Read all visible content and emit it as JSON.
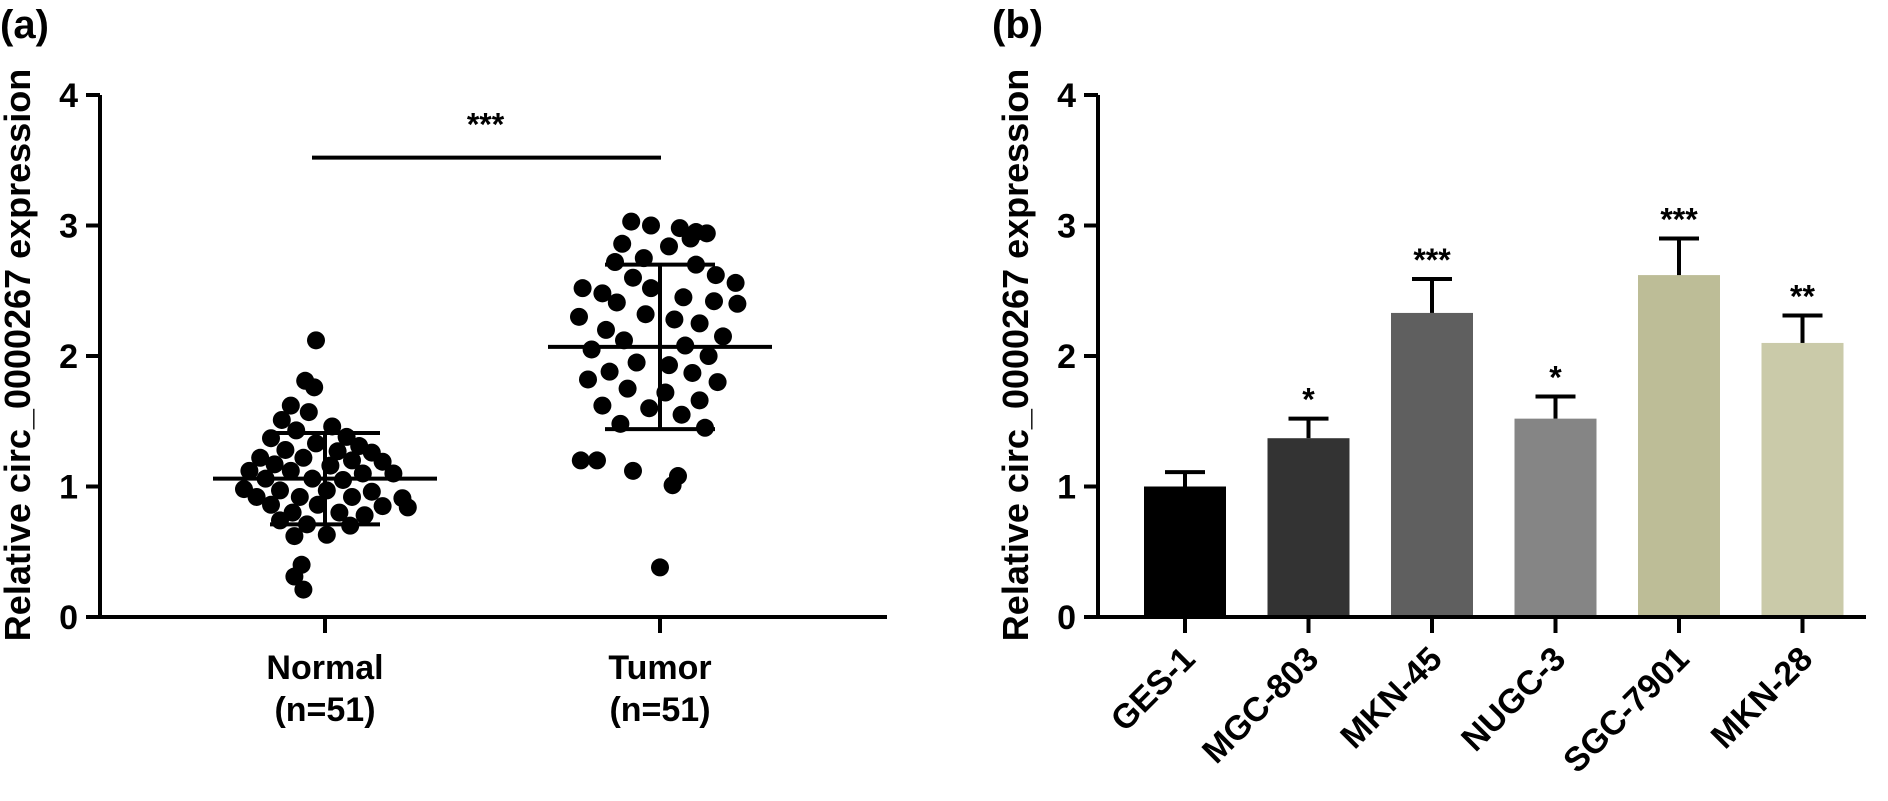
{
  "panels": {
    "a_label": "(a)",
    "b_label": "(b)"
  },
  "chart_data": [
    {
      "type": "scatter",
      "panel": "(a)",
      "ylabel": "Relative circ_0000267 expression",
      "ylim": [
        0,
        4
      ],
      "yticks": [
        "0",
        "1",
        "2",
        "3",
        "4"
      ],
      "categories": [
        {
          "label_line1": "Normal",
          "label_line2": "(n=51)",
          "mean": 1.06,
          "sd_low": 0.71,
          "sd_high": 1.41,
          "points": [
            {
              "x": -0.05,
              "y": 2.12
            },
            {
              "x": -0.11,
              "y": 1.81
            },
            {
              "x": -0.06,
              "y": 1.76
            },
            {
              "x": -0.19,
              "y": 1.62
            },
            {
              "x": -0.09,
              "y": 1.57
            },
            {
              "x": -0.24,
              "y": 1.51
            },
            {
              "x": 0.04,
              "y": 1.46
            },
            {
              "x": -0.16,
              "y": 1.43
            },
            {
              "x": 0.12,
              "y": 1.38
            },
            {
              "x": -0.3,
              "y": 1.37
            },
            {
              "x": -0.05,
              "y": 1.33
            },
            {
              "x": 0.19,
              "y": 1.31
            },
            {
              "x": -0.22,
              "y": 1.28
            },
            {
              "x": 0.07,
              "y": 1.27
            },
            {
              "x": 0.26,
              "y": 1.26
            },
            {
              "x": -0.36,
              "y": 1.22
            },
            {
              "x": -0.12,
              "y": 1.22
            },
            {
              "x": 0.15,
              "y": 1.2
            },
            {
              "x": 0.32,
              "y": 1.19
            },
            {
              "x": -0.28,
              "y": 1.17
            },
            {
              "x": 0.03,
              "y": 1.16
            },
            {
              "x": -0.42,
              "y": 1.12
            },
            {
              "x": -0.19,
              "y": 1.12
            },
            {
              "x": 0.21,
              "y": 1.1
            },
            {
              "x": 0.38,
              "y": 1.1
            },
            {
              "x": -0.33,
              "y": 1.06
            },
            {
              "x": -0.07,
              "y": 1.06
            },
            {
              "x": 0.1,
              "y": 1.05
            },
            {
              "x": -0.45,
              "y": 0.98
            },
            {
              "x": -0.25,
              "y": 0.97
            },
            {
              "x": 0.01,
              "y": 0.97
            },
            {
              "x": 0.26,
              "y": 0.96
            },
            {
              "x": -0.38,
              "y": 0.92
            },
            {
              "x": -0.14,
              "y": 0.92
            },
            {
              "x": 0.15,
              "y": 0.92
            },
            {
              "x": 0.43,
              "y": 0.91
            },
            {
              "x": -0.3,
              "y": 0.86
            },
            {
              "x": -0.04,
              "y": 0.86
            },
            {
              "x": 0.32,
              "y": 0.85
            },
            {
              "x": 0.46,
              "y": 0.84
            },
            {
              "x": -0.18,
              "y": 0.8
            },
            {
              "x": 0.08,
              "y": 0.8
            },
            {
              "x": 0.22,
              "y": 0.78
            },
            {
              "x": -0.25,
              "y": 0.74
            },
            {
              "x": -0.1,
              "y": 0.71
            },
            {
              "x": 0.14,
              "y": 0.7
            },
            {
              "x": -0.17,
              "y": 0.62
            },
            {
              "x": 0.01,
              "y": 0.63
            },
            {
              "x": -0.13,
              "y": 0.4
            },
            {
              "x": -0.17,
              "y": 0.31
            },
            {
              "x": -0.12,
              "y": 0.21
            }
          ]
        },
        {
          "label_line1": "Tumor",
          "label_line2": "(n=51)",
          "mean": 2.07,
          "sd_low": 1.44,
          "sd_high": 2.7,
          "points": [
            {
              "x": -0.16,
              "y": 3.03
            },
            {
              "x": -0.05,
              "y": 3.0
            },
            {
              "x": 0.11,
              "y": 2.98
            },
            {
              "x": 0.2,
              "y": 2.95
            },
            {
              "x": 0.26,
              "y": 2.94
            },
            {
              "x": 0.17,
              "y": 2.9
            },
            {
              "x": -0.21,
              "y": 2.86
            },
            {
              "x": 0.05,
              "y": 2.84
            },
            {
              "x": -0.09,
              "y": 2.75
            },
            {
              "x": -0.25,
              "y": 2.72
            },
            {
              "x": 0.2,
              "y": 2.7
            },
            {
              "x": 0.31,
              "y": 2.62
            },
            {
              "x": -0.15,
              "y": 2.6
            },
            {
              "x": -0.43,
              "y": 2.52
            },
            {
              "x": -0.32,
              "y": 2.48
            },
            {
              "x": 0.42,
              "y": 2.56
            },
            {
              "x": -0.05,
              "y": 2.52
            },
            {
              "x": 0.13,
              "y": 2.45
            },
            {
              "x": -0.24,
              "y": 2.41
            },
            {
              "x": 0.3,
              "y": 2.42
            },
            {
              "x": 0.43,
              "y": 2.4
            },
            {
              "x": -0.45,
              "y": 2.3
            },
            {
              "x": -0.08,
              "y": 2.32
            },
            {
              "x": 0.08,
              "y": 2.28
            },
            {
              "x": 0.22,
              "y": 2.25
            },
            {
              "x": -0.3,
              "y": 2.2
            },
            {
              "x": 0.35,
              "y": 2.15
            },
            {
              "x": -0.2,
              "y": 2.12
            },
            {
              "x": 0.14,
              "y": 2.08
            },
            {
              "x": -0.38,
              "y": 2.05
            },
            {
              "x": 0.27,
              "y": 2.0
            },
            {
              "x": -0.13,
              "y": 1.95
            },
            {
              "x": 0.05,
              "y": 1.93
            },
            {
              "x": -0.28,
              "y": 1.88
            },
            {
              "x": 0.18,
              "y": 1.87
            },
            {
              "x": -0.4,
              "y": 1.82
            },
            {
              "x": 0.32,
              "y": 1.8
            },
            {
              "x": -0.18,
              "y": 1.75
            },
            {
              "x": 0.03,
              "y": 1.72
            },
            {
              "x": 0.22,
              "y": 1.66
            },
            {
              "x": -0.32,
              "y": 1.62
            },
            {
              "x": -0.06,
              "y": 1.6
            },
            {
              "x": 0.12,
              "y": 1.55
            },
            {
              "x": -0.22,
              "y": 1.48
            },
            {
              "x": 0.25,
              "y": 1.45
            },
            {
              "x": -0.44,
              "y": 1.2
            },
            {
              "x": -0.35,
              "y": 1.2
            },
            {
              "x": -0.15,
              "y": 1.12
            },
            {
              "x": 0.1,
              "y": 1.08
            },
            {
              "x": 0.07,
              "y": 1.01
            },
            {
              "x": 0.0,
              "y": 0.38
            }
          ]
        }
      ],
      "significance": {
        "label": "***",
        "from": 0,
        "to": 1,
        "y": 3.52
      }
    },
    {
      "type": "bar",
      "panel": "(b)",
      "ylabel": "Relative circ_0000267 expression",
      "ylim": [
        0,
        4
      ],
      "yticks": [
        "0",
        "1",
        "2",
        "3",
        "4"
      ],
      "categories": [
        "GES-1",
        "MGC-803",
        "MKN-45",
        "NUGC-3",
        "SGC-7901",
        "MKN-28"
      ],
      "values": [
        1.0,
        1.37,
        2.33,
        1.52,
        2.62,
        2.1
      ],
      "errors": [
        0.11,
        0.15,
        0.26,
        0.17,
        0.28,
        0.21
      ],
      "significance": [
        "",
        "*",
        "***",
        "*",
        "***",
        "**"
      ],
      "colors": [
        "#000000",
        "#333333",
        "#5f5f5f",
        "#858585",
        "#bdbd97",
        "#cacaa9"
      ]
    }
  ]
}
